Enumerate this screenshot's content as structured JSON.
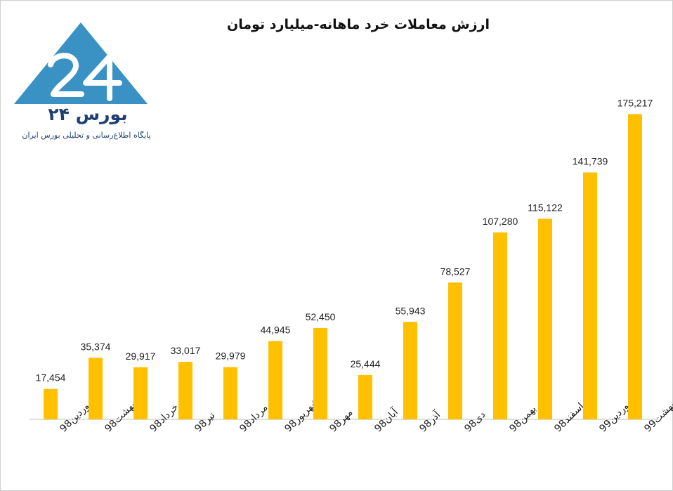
{
  "chart_data": {
    "type": "bar",
    "title": "ارزش معاملات خرد ماهانه-میلیارد تومان",
    "categories": [
      "فروردین98",
      "اردیبهشت98",
      "خرداد98",
      "تیر98",
      "مرداد98",
      "شهریور98",
      "مهر98",
      "آبان98",
      "آذر98",
      "دی98",
      "بهمن98",
      "اسفند98",
      "فروردین99",
      "اردیبهشت99"
    ],
    "values": [
      17454,
      35374,
      29917,
      33017,
      29979,
      44945,
      52450,
      25444,
      55943,
      78527,
      107280,
      115122,
      141739,
      175217
    ],
    "value_labels": [
      "17,454",
      "35,374",
      "29,917",
      "33,017",
      "29,979",
      "44,945",
      "52,450",
      "25,444",
      "55,943",
      "78,527",
      "107,280",
      "115,122",
      "141,739",
      "175,217"
    ],
    "xlabel": "",
    "ylabel": "",
    "ylim": [
      0,
      200000
    ],
    "grid": false,
    "bar_color": "#FFC000"
  },
  "logo": {
    "name": "بورس ۲۴",
    "tagline": "پایگاه اطلاع‌رسانی و تحلیلی بورس ایران",
    "color": "#3A92C4",
    "text_color": "#1F3F73"
  }
}
